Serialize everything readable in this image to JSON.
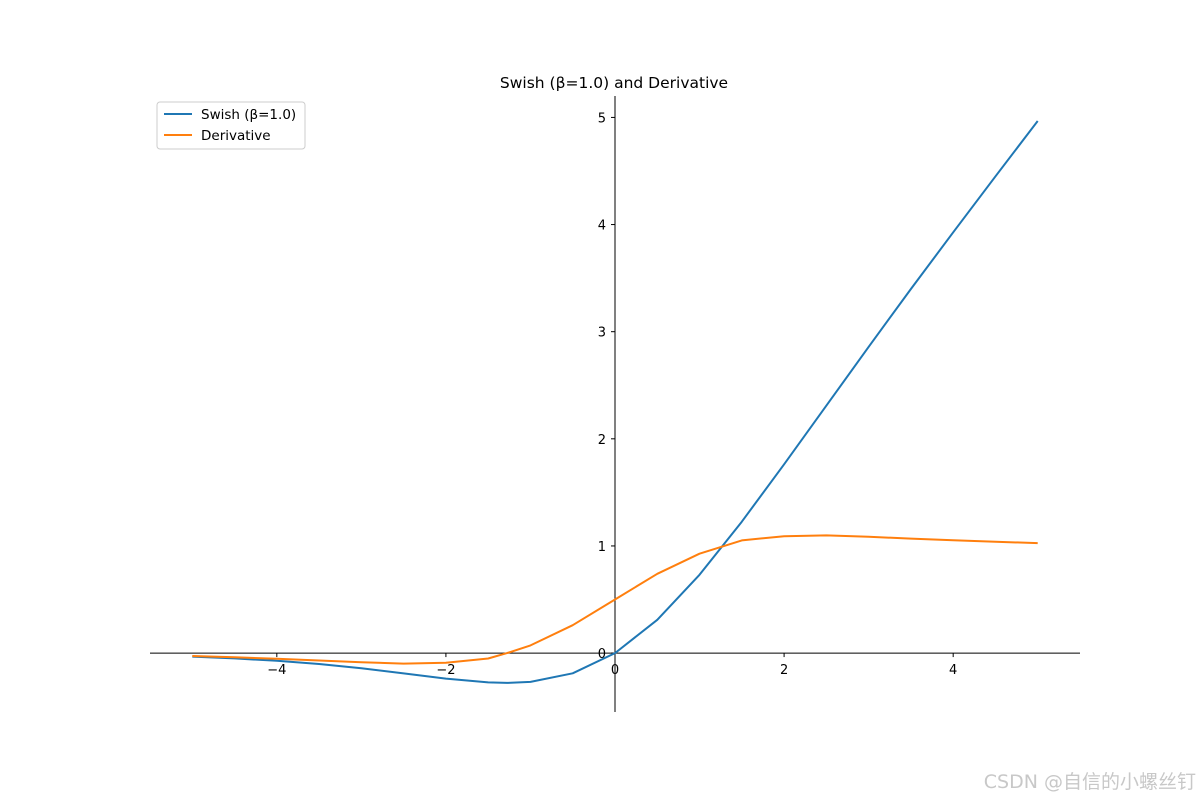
{
  "chart_data": {
    "type": "line",
    "title": "Swish (β=1.0) and Derivative",
    "xlabel": "",
    "ylabel": "",
    "xlim": [
      -5.5,
      5.5
    ],
    "ylim": [
      -0.55,
      5.2
    ],
    "x_ticks": [
      -4,
      -2,
      0,
      2,
      4
    ],
    "x_tick_labels": [
      "−4",
      "−2",
      "0",
      "2",
      "4"
    ],
    "y_ticks": [
      0,
      1,
      2,
      3,
      4,
      5
    ],
    "y_tick_labels": [
      "0",
      "1",
      "2",
      "3",
      "4",
      "5"
    ],
    "grid": false,
    "legend_position": "top-left",
    "axes_style": "centered spines at origin",
    "x": [
      -5,
      -4.5,
      -4,
      -3.5,
      -3,
      -2.5,
      -2,
      -1.5,
      -1.278,
      -1,
      -0.5,
      0,
      0.5,
      1,
      1.5,
      2,
      2.5,
      3,
      3.5,
      4,
      4.5,
      5
    ],
    "series": [
      {
        "name": "Swish (β=1.0)",
        "color": "#1f77b4",
        "values": [
          -0.033,
          -0.05,
          -0.072,
          -0.102,
          -0.142,
          -0.19,
          -0.238,
          -0.274,
          -0.278,
          -0.269,
          -0.189,
          0,
          0.311,
          0.731,
          1.226,
          1.762,
          2.31,
          2.858,
          3.398,
          3.928,
          4.45,
          4.967
        ]
      },
      {
        "name": "Derivative",
        "color": "#ff7f0e",
        "values": [
          -0.027,
          -0.039,
          -0.053,
          -0.069,
          -0.085,
          -0.098,
          -0.091,
          -0.051,
          0,
          0.072,
          0.26,
          0.5,
          0.74,
          0.928,
          1.052,
          1.091,
          1.098,
          1.085,
          1.069,
          1.053,
          1.039,
          1.027
        ]
      }
    ]
  },
  "watermark": "CSDN @自信的小螺丝钉"
}
